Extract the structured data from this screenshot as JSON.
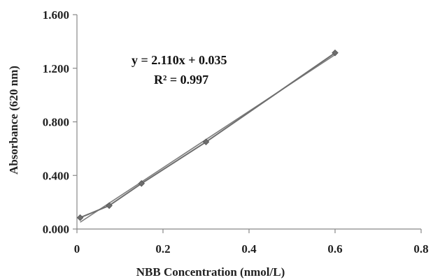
{
  "chart_data": {
    "type": "scatter",
    "title": "",
    "xlabel": "NBB  Concentration (nmol/L)",
    "ylabel": "Absorbance (620 nm)",
    "xlim": [
      0,
      0.8
    ],
    "ylim": [
      0,
      1.6
    ],
    "x_ticks": [
      0,
      0.2,
      0.4,
      0.6,
      0.8
    ],
    "x_tick_labels": [
      "0",
      "0.2",
      "0.4",
      "0.6",
      "0.8"
    ],
    "y_ticks": [
      0,
      0.4,
      0.8,
      1.2,
      1.6
    ],
    "y_tick_labels": [
      "0.000",
      "0.400",
      "0.800",
      "1.200",
      "1.600"
    ],
    "grid": false,
    "legend": "none",
    "series": [
      {
        "x": [
          0.0075,
          0.075,
          0.15,
          0.3,
          0.6
        ],
        "y": [
          0.085,
          0.175,
          0.34,
          0.65,
          1.315
        ],
        "color": "#6e6e6e",
        "marker": "diamond",
        "line": "connected"
      }
    ],
    "trendline": {
      "slope": 2.11,
      "intercept": 0.035,
      "color": "#7d7d7d"
    },
    "annotations": {
      "equation": "y = 2.110x + 0.035",
      "r_squared": "R² = 0.997"
    }
  }
}
